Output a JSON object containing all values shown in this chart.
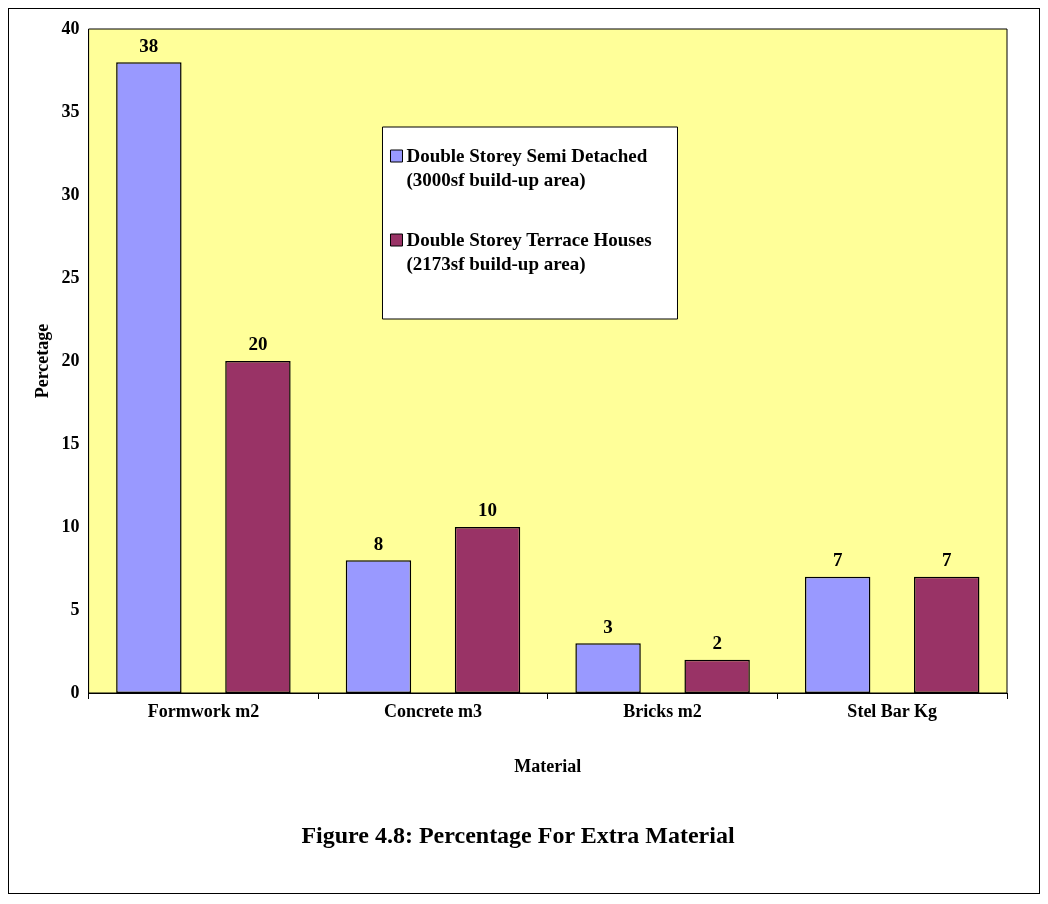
{
  "chart_data": {
    "type": "bar",
    "title": "Figure 4.8: Percentage For Extra Material",
    "xlabel": "Material",
    "ylabel": "Percetage",
    "categories": [
      "Formwork m2",
      "Concrete m3",
      "Bricks m2",
      "Stel Bar Kg"
    ],
    "series": [
      {
        "name": "Double Storey Semi Detached (3000sf build-up area)",
        "color": "#9999ff",
        "values": [
          38,
          8,
          3,
          7
        ]
      },
      {
        "name": "Double Storey Terrace Houses (2173sf build-up area)",
        "color": "#993366",
        "values": [
          20,
          10,
          2,
          7
        ]
      }
    ],
    "ylim": [
      0,
      40
    ],
    "yticks": [
      0,
      5,
      10,
      15,
      20,
      25,
      30,
      35,
      40
    ],
    "data_labels": true,
    "grid": false,
    "legend": "top"
  }
}
